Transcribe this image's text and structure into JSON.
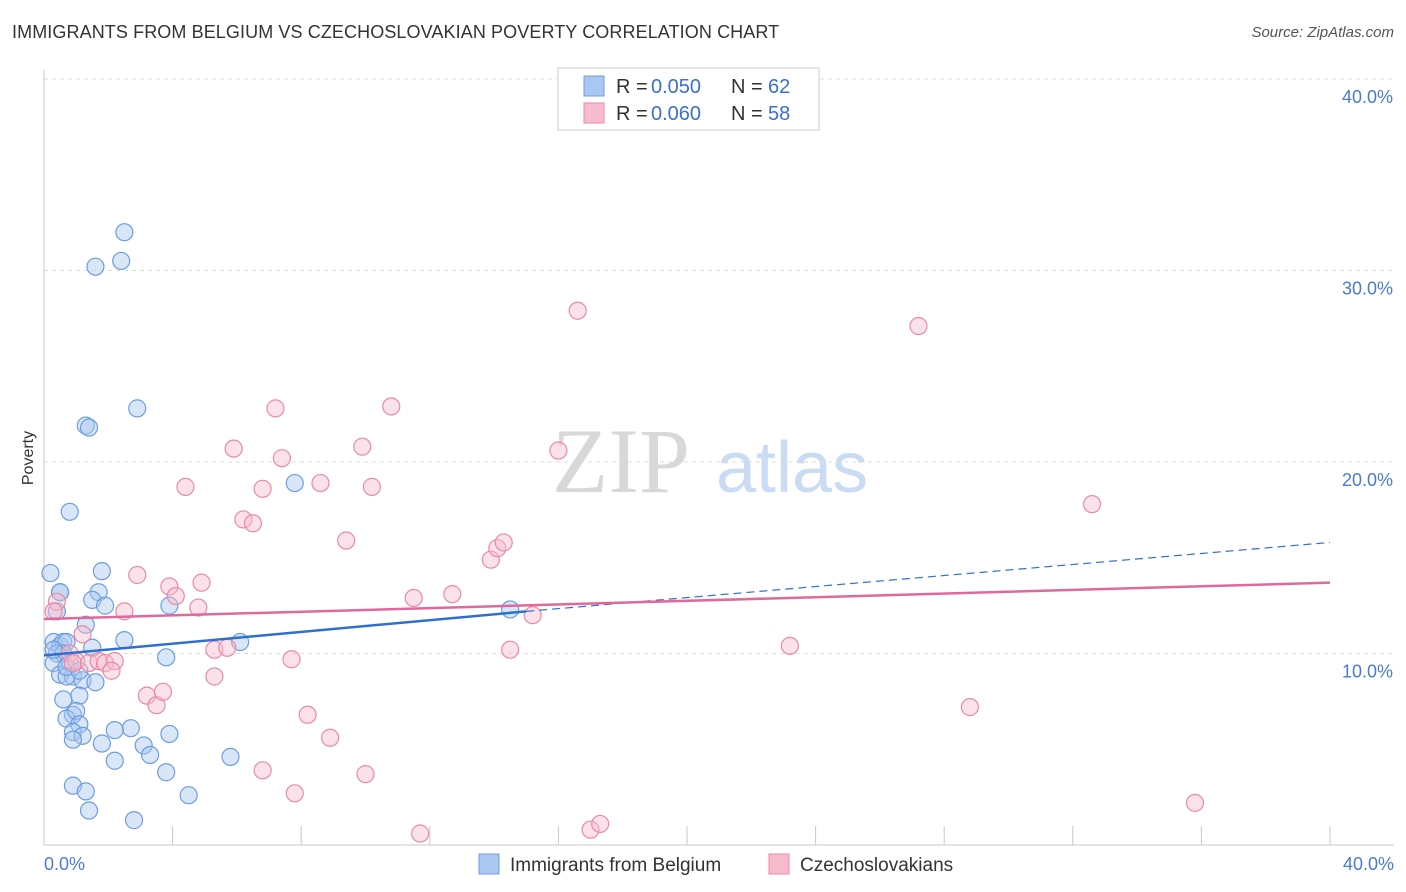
{
  "title": "IMMIGRANTS FROM BELGIUM VS CZECHOSLOVAKIAN POVERTY CORRELATION CHART",
  "source": "Source: ZipAtlas.com",
  "watermark": {
    "zip": "ZIP",
    "atlas": "atlas"
  },
  "colors": {
    "blue_fill": "#a9c7f0",
    "blue_stroke": "#6d9de0",
    "blue_line": "#2f6fcf",
    "pink_fill": "#f6bccd",
    "pink_stroke": "#e98aa8",
    "pink_line": "#e0699a",
    "tick_text": "#4a7bd0",
    "grid": "#dddddd"
  },
  "legend": {
    "r_label": "R =",
    "n_label": "N =",
    "series": [
      {
        "r": "0.050",
        "n": "62"
      },
      {
        "r": "0.060",
        "n": "58"
      }
    ]
  },
  "chart_data": {
    "type": "scatter",
    "title": "IMMIGRANTS FROM BELGIUM VS CZECHOSLOVAKIAN POVERTY CORRELATION CHART",
    "xlabel": "",
    "ylabel": "Poverty",
    "xlim": [
      0,
      40
    ],
    "ylim": [
      0,
      40
    ],
    "x_ticks": [
      "0.0%",
      "40.0%"
    ],
    "y_ticks": [
      {
        "value": 10,
        "label": "10.0%"
      },
      {
        "value": 20,
        "label": "20.0%"
      },
      {
        "value": 30,
        "label": "30.0%"
      },
      {
        "value": 40,
        "label": "40.0%"
      }
    ],
    "series": [
      {
        "name": "Immigrants from Belgium",
        "color": "blue",
        "trend": {
          "x0": 0,
          "y0": 9.9,
          "x1": 15,
          "y1": 12.2,
          "dash_x1": 40,
          "dash_y1": 15.8
        },
        "points": [
          [
            0.2,
            14.2
          ],
          [
            0.5,
            13.2
          ],
          [
            0.4,
            12.2
          ],
          [
            0.3,
            10.6
          ],
          [
            0.5,
            10.4
          ],
          [
            0.6,
            10.6
          ],
          [
            0.7,
            10.6
          ],
          [
            0.4,
            10.0
          ],
          [
            0.6,
            10.0
          ],
          [
            0.3,
            9.5
          ],
          [
            0.8,
            9.5
          ],
          [
            0.5,
            8.9
          ],
          [
            0.9,
            8.8
          ],
          [
            0.7,
            8.8
          ],
          [
            1.2,
            8.6
          ],
          [
            1.6,
            8.5
          ],
          [
            1.7,
            13.2
          ],
          [
            1.5,
            12.8
          ],
          [
            1.9,
            12.5
          ],
          [
            1.3,
            11.5
          ],
          [
            1.8,
            14.3
          ],
          [
            2.5,
            10.7
          ],
          [
            1.5,
            10.3
          ],
          [
            3.8,
            9.8
          ],
          [
            6.1,
            10.6
          ],
          [
            3.9,
            12.5
          ],
          [
            0.8,
            17.4
          ],
          [
            1.3,
            21.9
          ],
          [
            1.4,
            21.8
          ],
          [
            2.9,
            22.8
          ],
          [
            1.6,
            30.2
          ],
          [
            2.4,
            30.5
          ],
          [
            2.5,
            32.0
          ],
          [
            7.8,
            18.9
          ],
          [
            14.5,
            12.3
          ],
          [
            1.1,
            7.8
          ],
          [
            0.6,
            7.6
          ],
          [
            0.9,
            6.8
          ],
          [
            0.7,
            6.6
          ],
          [
            1.0,
            7.0
          ],
          [
            1.1,
            6.3
          ],
          [
            0.9,
            5.9
          ],
          [
            1.2,
            5.7
          ],
          [
            0.9,
            5.5
          ],
          [
            1.8,
            5.3
          ],
          [
            2.7,
            6.1
          ],
          [
            2.2,
            6.0
          ],
          [
            3.9,
            5.8
          ],
          [
            3.1,
            5.2
          ],
          [
            3.3,
            4.7
          ],
          [
            2.2,
            4.4
          ],
          [
            5.8,
            4.6
          ],
          [
            3.8,
            3.8
          ],
          [
            0.9,
            3.1
          ],
          [
            1.3,
            2.8
          ],
          [
            4.5,
            2.6
          ],
          [
            1.4,
            1.8
          ],
          [
            2.8,
            1.3
          ],
          [
            0.5,
            13.2
          ],
          [
            0.7,
            9.3
          ],
          [
            0.3,
            10.2
          ],
          [
            1.1,
            9.1
          ]
        ]
      },
      {
        "name": "Czechoslovakians",
        "color": "pink",
        "trend": {
          "x0": 0,
          "y0": 11.8,
          "x1": 40,
          "y1": 13.7
        },
        "points": [
          [
            0.4,
            12.7
          ],
          [
            0.3,
            12.2
          ],
          [
            1.2,
            11.0
          ],
          [
            0.8,
            10.0
          ],
          [
            1.0,
            9.6
          ],
          [
            0.9,
            9.5
          ],
          [
            1.4,
            9.5
          ],
          [
            1.7,
            9.6
          ],
          [
            1.9,
            9.5
          ],
          [
            2.2,
            9.6
          ],
          [
            2.1,
            9.1
          ],
          [
            2.5,
            12.2
          ],
          [
            2.9,
            14.1
          ],
          [
            3.9,
            13.5
          ],
          [
            4.1,
            13.0
          ],
          [
            4.8,
            12.4
          ],
          [
            4.9,
            13.7
          ],
          [
            3.2,
            7.8
          ],
          [
            3.5,
            7.3
          ],
          [
            3.7,
            8.0
          ],
          [
            5.3,
            8.8
          ],
          [
            5.3,
            10.2
          ],
          [
            5.7,
            10.3
          ],
          [
            4.4,
            18.7
          ],
          [
            5.9,
            20.7
          ],
          [
            6.2,
            17.0
          ],
          [
            6.5,
            16.8
          ],
          [
            6.8,
            18.6
          ],
          [
            7.2,
            22.8
          ],
          [
            7.4,
            20.2
          ],
          [
            7.7,
            9.7
          ],
          [
            8.2,
            6.8
          ],
          [
            8.6,
            18.9
          ],
          [
            8.9,
            5.6
          ],
          [
            9.4,
            15.9
          ],
          [
            9.9,
            20.8
          ],
          [
            10.2,
            18.7
          ],
          [
            10.0,
            3.7
          ],
          [
            10.8,
            22.9
          ],
          [
            11.5,
            12.9
          ],
          [
            12.7,
            13.1
          ],
          [
            13.9,
            14.9
          ],
          [
            14.1,
            15.5
          ],
          [
            14.3,
            15.8
          ],
          [
            15.2,
            12.0
          ],
          [
            16.0,
            20.6
          ],
          [
            16.6,
            27.9
          ],
          [
            17.0,
            0.8
          ],
          [
            17.3,
            1.1
          ],
          [
            14.5,
            10.2
          ],
          [
            23.2,
            10.4
          ],
          [
            27.2,
            27.1
          ],
          [
            28.8,
            7.2
          ],
          [
            32.6,
            17.8
          ],
          [
            35.8,
            2.2
          ],
          [
            7.8,
            2.7
          ],
          [
            6.8,
            3.9
          ],
          [
            11.7,
            0.6
          ]
        ]
      }
    ]
  },
  "bottom_legend": [
    "Immigrants from Belgium",
    "Czechoslovakians"
  ]
}
